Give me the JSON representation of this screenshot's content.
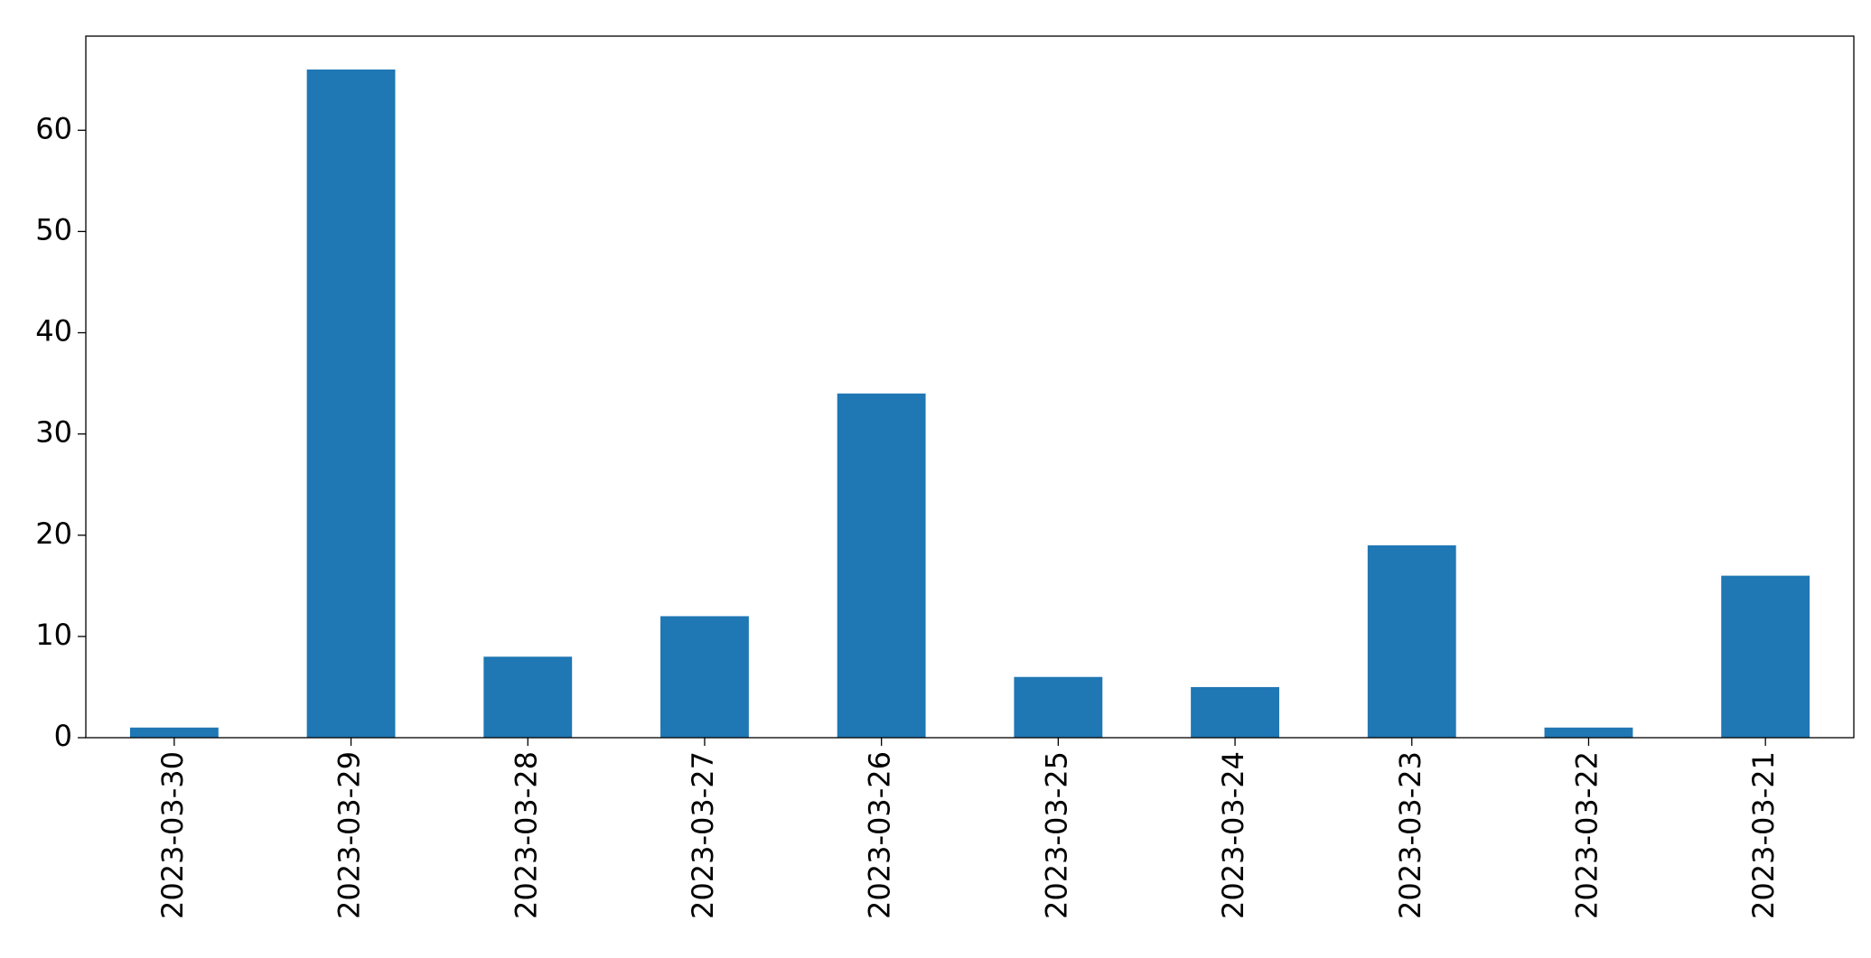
{
  "chart_data": {
    "type": "bar",
    "categories": [
      "2023-03-30",
      "2023-03-29",
      "2023-03-28",
      "2023-03-27",
      "2023-03-26",
      "2023-03-25",
      "2023-03-24",
      "2023-03-23",
      "2023-03-22",
      "2023-03-21"
    ],
    "values": [
      1,
      66,
      8,
      12,
      34,
      6,
      5,
      19,
      1,
      16
    ],
    "color": "#1f77b4",
    "ylim": [
      0,
      69.3
    ],
    "yticks": [
      0,
      10,
      20,
      30,
      40,
      50,
      60
    ],
    "grid": false
  }
}
